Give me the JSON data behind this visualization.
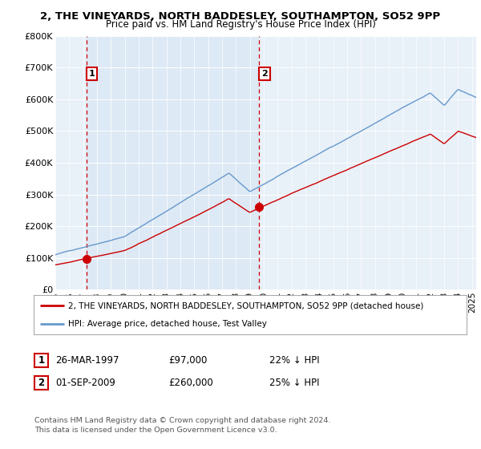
{
  "title": "2, THE VINEYARDS, NORTH BADDESLEY, SOUTHAMPTON, SO52 9PP",
  "subtitle": "Price paid vs. HM Land Registry's House Price Index (HPI)",
  "ylim": [
    0,
    800000
  ],
  "yticks": [
    0,
    100000,
    200000,
    300000,
    400000,
    500000,
    600000,
    700000,
    800000
  ],
  "ytick_labels": [
    "£0",
    "£100K",
    "£200K",
    "£300K",
    "£400K",
    "£500K",
    "£600K",
    "£700K",
    "£800K"
  ],
  "sale1_x": 1997.23,
  "sale1_price": 97000,
  "sale1_label": "1",
  "sale1_note": "26-MAR-1997",
  "sale1_amount": "£97,000",
  "sale1_pct": "22% ↓ HPI",
  "sale2_x": 2009.67,
  "sale2_price": 260000,
  "sale2_label": "2",
  "sale2_note": "01-SEP-2009",
  "sale2_amount": "£260,000",
  "sale2_pct": "25% ↓ HPI",
  "hpi_color": "#6699cc",
  "price_color": "#cc0000",
  "dashed_color": "#cc0000",
  "shade_color": "#dce8f5",
  "legend_label1": "2, THE VINEYARDS, NORTH BADDESLEY, SOUTHAMPTON, SO52 9PP (detached house)",
  "legend_label2": "HPI: Average price, detached house, Test Valley",
  "footer1": "Contains HM Land Registry data © Crown copyright and database right 2024.",
  "footer2": "This data is licensed under the Open Government Licence v3.0.",
  "bg_color": "#e8f0f8",
  "xlim_start": 1995,
  "xlim_end": 2025.3
}
